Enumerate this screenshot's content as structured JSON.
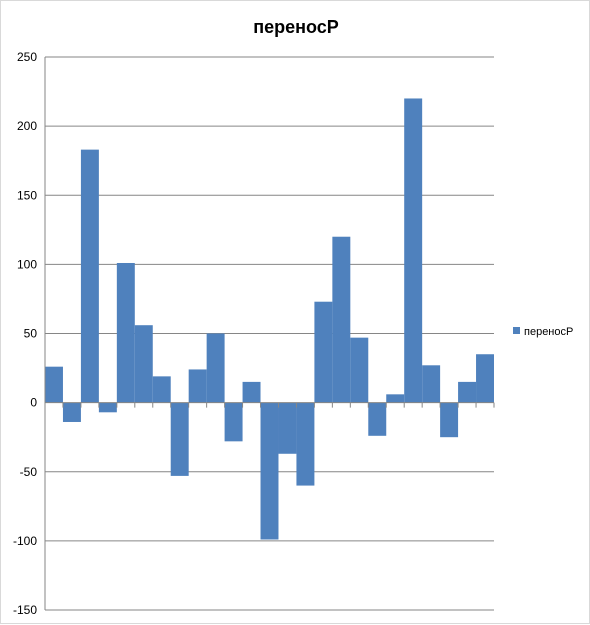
{
  "chart_data": {
    "type": "bar",
    "title": "переносP",
    "xlabel": "",
    "ylabel": "",
    "ylim": [
      -150,
      250
    ],
    "yticks": [
      -150,
      -100,
      -50,
      0,
      50,
      100,
      150,
      200,
      250
    ],
    "grid": true,
    "legend_position": "right",
    "bar_color": "#4f81bd",
    "series": [
      {
        "name": "переносP",
        "values": [
          26,
          -14,
          183,
          -7,
          101,
          56,
          19,
          -53,
          24,
          50,
          -28,
          15,
          -99,
          -37,
          -60,
          73,
          120,
          47,
          -24,
          6,
          220,
          27,
          -25,
          15,
          35
        ]
      }
    ]
  }
}
